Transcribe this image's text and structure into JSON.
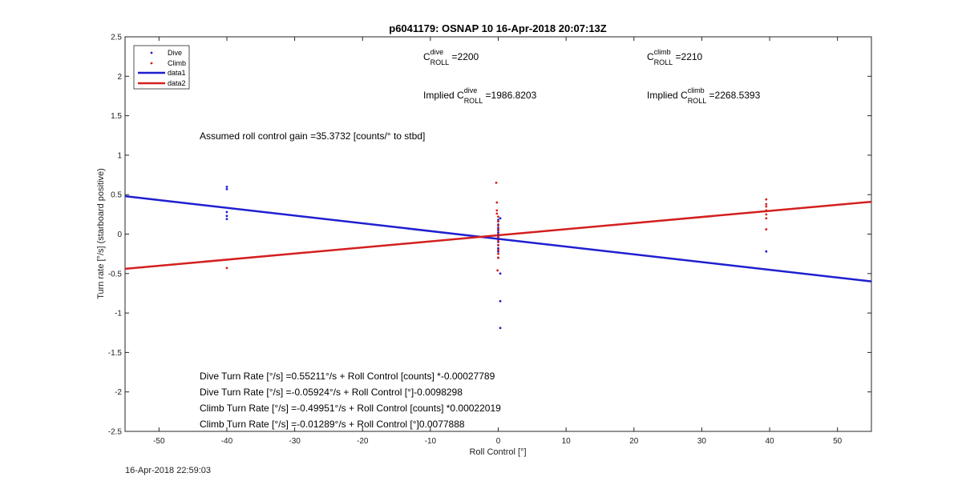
{
  "timestamp": "16-Apr-2018 22:59:03",
  "chart_data": {
    "type": "scatter",
    "title": "p6041179: OSNAP 10 16-Apr-2018 20:07:13Z",
    "xlabel": "Roll Control [°]",
    "ylabel": "Turn rate [°/s] (starboard positive)",
    "xlim": [
      -55,
      55
    ],
    "ylim": [
      -2.5,
      2.5
    ],
    "x_ticks": [
      -50,
      -40,
      -30,
      -20,
      -10,
      0,
      10,
      20,
      30,
      40,
      50
    ],
    "y_ticks": [
      -2.5,
      -2,
      -1.5,
      -1,
      -0.5,
      0,
      0.5,
      1,
      1.5,
      2,
      2.5
    ],
    "x_tick_labels": [
      "-50",
      "-40",
      "-30",
      "-20",
      "-10",
      "0",
      "10",
      "20",
      "30",
      "40",
      "50"
    ],
    "y_tick_labels": [
      "-2.5",
      "-2",
      "-1.5",
      "-1",
      "-0.5",
      "0",
      "0.5",
      "1",
      "1.5",
      "2",
      "2.5"
    ],
    "grid": false,
    "legend_position": "top-left",
    "series": [
      {
        "name": "Dive",
        "kind": "points",
        "color": "#1f1fd0",
        "points": [
          [
            -40,
            0.6
          ],
          [
            -40,
            0.57
          ],
          [
            -40,
            0.28
          ],
          [
            -40,
            0.23
          ],
          [
            -40,
            0.19
          ],
          [
            0,
            0.18
          ],
          [
            0,
            0.12
          ],
          [
            0,
            0.08
          ],
          [
            0,
            0.05
          ],
          [
            0,
            0.02
          ],
          [
            0,
            -0.01
          ],
          [
            0,
            -0.04
          ],
          [
            0,
            -0.07
          ],
          [
            0,
            -0.1
          ],
          [
            0,
            -0.14
          ],
          [
            0,
            -0.18
          ],
          [
            0,
            -0.22
          ],
          [
            0,
            -0.3
          ],
          [
            0.3,
            0.2
          ],
          [
            0.3,
            -0.5
          ],
          [
            0.3,
            -0.85
          ],
          [
            0.3,
            -1.19
          ],
          [
            39.5,
            -0.22
          ]
        ]
      },
      {
        "name": "Climb",
        "kind": "points",
        "color": "#d41f1f",
        "points": [
          [
            -40,
            -0.43
          ],
          [
            -0.3,
            0.65
          ],
          [
            -0.2,
            0.4
          ],
          [
            -0.2,
            0.3
          ],
          [
            -0.2,
            0.26
          ],
          [
            0,
            0.22
          ],
          [
            0,
            0.16
          ],
          [
            0,
            0.11
          ],
          [
            0,
            0.06
          ],
          [
            0,
            0.0
          ],
          [
            0,
            -0.04
          ],
          [
            0,
            -0.09
          ],
          [
            0,
            -0.14
          ],
          [
            0,
            -0.2
          ],
          [
            0,
            -0.25
          ],
          [
            0,
            -0.3
          ],
          [
            -0.1,
            -0.46
          ],
          [
            39.5,
            0.44
          ],
          [
            39.5,
            0.38
          ],
          [
            39.5,
            0.35
          ],
          [
            39.5,
            0.3
          ],
          [
            39.5,
            0.25
          ],
          [
            39.5,
            0.2
          ],
          [
            39.5,
            0.06
          ]
        ]
      },
      {
        "name": "data1",
        "kind": "line",
        "color": "#1f1fd0",
        "x": [
          -55,
          55
        ],
        "y": [
          0.48,
          -0.6
        ]
      },
      {
        "name": "data2",
        "kind": "line",
        "color": "#d41f1f",
        "x": [
          -55,
          55
        ],
        "y": [
          -0.44,
          0.41
        ]
      }
    ],
    "annotations": {
      "c_dive": {
        "prefix": "C",
        "sup": "dive",
        "sub": "ROLL",
        "value": " =2200"
      },
      "c_climb": {
        "prefix": "C",
        "sup": "climb",
        "sub": "ROLL",
        "value": " =2210"
      },
      "implied_dive": {
        "prefix": "Implied C",
        "sup": "dive",
        "sub": "ROLL",
        "value": " =1986.8203"
      },
      "implied_climb": {
        "prefix": "Implied C",
        "sup": "climb",
        "sub": "ROLL",
        "value": " =2268.5393"
      },
      "gain": "Assumed roll control gain =35.3732 [counts/° to stbd]",
      "eq1": "Dive Turn Rate [°/s] =0.55211°/s + Roll Control [counts] *-0.00027789",
      "eq2": "Dive Turn Rate [°/s] =-0.05924°/s + Roll Control [°]-0.0098298",
      "eq3": "Climb Turn Rate [°/s] =-0.49951°/s + Roll Control [counts] *0.00022019",
      "eq4": "Climb Turn Rate [°/s] =-0.01289°/s + Roll Control [°]0.0077888"
    }
  }
}
